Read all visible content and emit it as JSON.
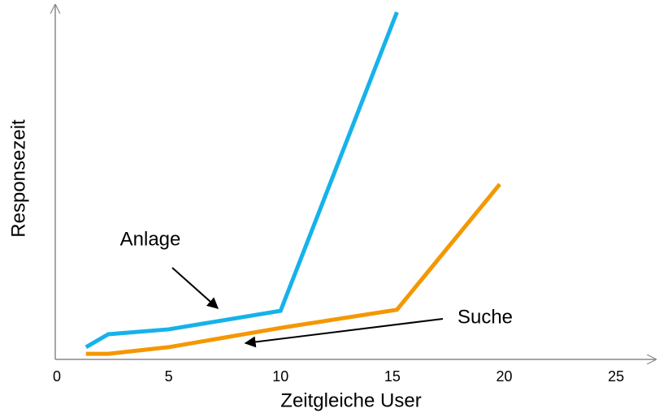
{
  "chart_data": {
    "type": "line",
    "xlabel": "Zeitgleiche User",
    "ylabel": "Responsezeit",
    "xlim": [
      0,
      26.7
    ],
    "xticks": [
      0,
      5,
      10,
      15,
      20,
      25
    ],
    "ylim": [
      0,
      100
    ],
    "series": [
      {
        "name": "Anlage",
        "color": "#16b2ea",
        "x": [
          1.3,
          2.3,
          5,
          10,
          15.2
        ],
        "values": [
          3.5,
          7.2,
          8.6,
          13.9,
          99.3
        ]
      },
      {
        "name": "Suche",
        "color": "#f39800",
        "x": [
          1.3,
          2.3,
          5,
          10,
          15.2,
          19.8
        ],
        "values": [
          1.6,
          1.6,
          3.5,
          9,
          14.2,
          50.1
        ]
      }
    ]
  }
}
